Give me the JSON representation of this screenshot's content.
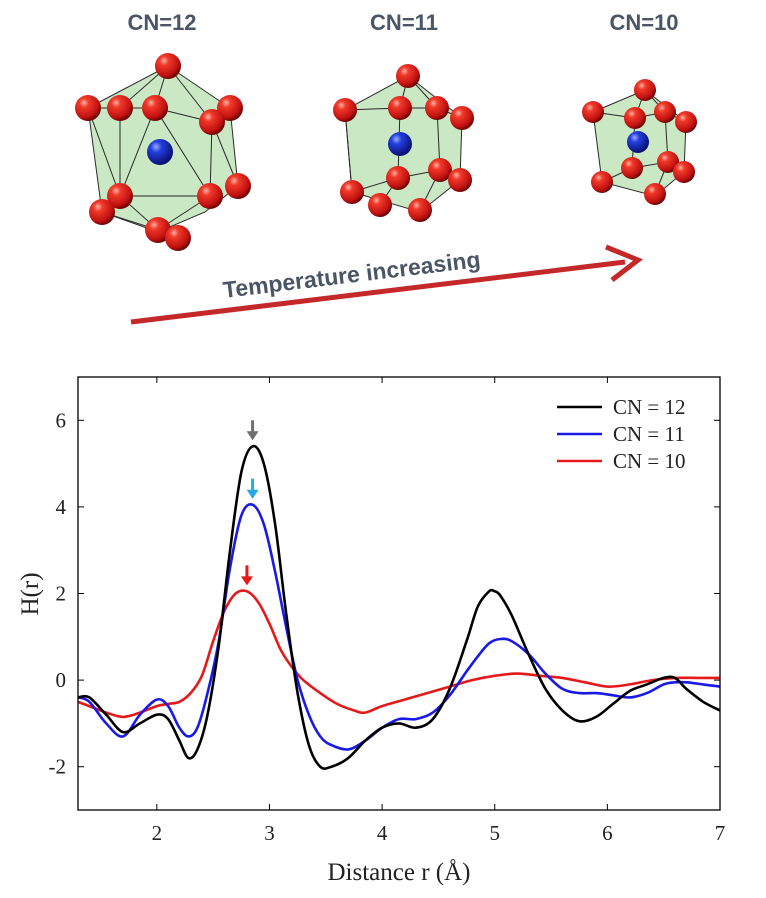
{
  "top_panel": {
    "cluster_labels": [
      "CN=12",
      "CN=11",
      "CN=10"
    ],
    "arrow_label": "Temperature increasing",
    "colors": {
      "atom_outer": "#e21a1a",
      "atom_center": "#1c2fd6",
      "polyhedron_fill": "#bfe4b8",
      "arrow": "#c42828",
      "label_text": "#4a5666"
    }
  },
  "chart_data": {
    "type": "line",
    "xlabel": "Distance r (Å)",
    "ylabel": "H(r)",
    "xlim": [
      1.3,
      7.0
    ],
    "ylim": [
      -3.0,
      7.0
    ],
    "xticks": [
      2,
      3,
      4,
      5,
      6,
      7
    ],
    "yticks": [
      -2,
      0,
      2,
      4,
      6
    ],
    "legend_position": "top-right",
    "grid": false,
    "series": [
      {
        "name": "CN = 12",
        "color": "#000000",
        "x": [
          1.3,
          1.4,
          1.55,
          1.7,
          1.85,
          2.0,
          2.1,
          2.2,
          2.28,
          2.36,
          2.45,
          2.55,
          2.65,
          2.75,
          2.85,
          2.95,
          3.05,
          3.15,
          3.25,
          3.35,
          3.45,
          3.55,
          3.7,
          3.85,
          4.0,
          4.15,
          4.3,
          4.45,
          4.6,
          4.75,
          4.85,
          4.95,
          5.0,
          5.05,
          5.15,
          5.3,
          5.45,
          5.6,
          5.75,
          5.9,
          6.05,
          6.2,
          6.35,
          6.5,
          6.6,
          6.7,
          6.85,
          7.0
        ],
        "y": [
          -0.4,
          -0.4,
          -0.8,
          -1.2,
          -1.0,
          -0.8,
          -0.9,
          -1.4,
          -1.8,
          -1.6,
          -0.8,
          0.8,
          3.0,
          4.8,
          5.4,
          5.0,
          3.6,
          1.5,
          -0.3,
          -1.5,
          -2.0,
          -2.0,
          -1.8,
          -1.4,
          -1.1,
          -1.0,
          -1.1,
          -0.9,
          -0.2,
          0.9,
          1.7,
          2.05,
          2.05,
          1.95,
          1.5,
          0.6,
          -0.2,
          -0.7,
          -0.95,
          -0.85,
          -0.55,
          -0.25,
          -0.1,
          0.05,
          0.05,
          -0.2,
          -0.5,
          -0.7
        ]
      },
      {
        "name": "CN = 11",
        "color": "#1a1ae6",
        "x": [
          1.3,
          1.4,
          1.55,
          1.7,
          1.85,
          2.0,
          2.1,
          2.2,
          2.28,
          2.36,
          2.45,
          2.55,
          2.65,
          2.75,
          2.85,
          2.95,
          3.05,
          3.15,
          3.25,
          3.35,
          3.45,
          3.55,
          3.7,
          3.85,
          4.0,
          4.15,
          4.3,
          4.45,
          4.6,
          4.75,
          4.85,
          4.95,
          5.05,
          5.15,
          5.3,
          5.45,
          5.6,
          5.75,
          5.9,
          6.05,
          6.2,
          6.35,
          6.5,
          6.6,
          6.7,
          6.85,
          7.0
        ],
        "y": [
          -0.4,
          -0.5,
          -1.0,
          -1.3,
          -0.8,
          -0.45,
          -0.6,
          -1.1,
          -1.3,
          -1.1,
          -0.3,
          0.9,
          2.6,
          3.8,
          4.05,
          3.6,
          2.5,
          1.2,
          0.0,
          -0.8,
          -1.3,
          -1.5,
          -1.6,
          -1.4,
          -1.1,
          -0.9,
          -0.9,
          -0.75,
          -0.35,
          0.2,
          0.55,
          0.85,
          0.95,
          0.9,
          0.6,
          0.15,
          -0.2,
          -0.3,
          -0.3,
          -0.35,
          -0.4,
          -0.3,
          -0.1,
          -0.05,
          -0.05,
          -0.1,
          -0.15
        ]
      },
      {
        "name": "CN = 10",
        "color": "#e41a1a",
        "x": [
          1.3,
          1.4,
          1.55,
          1.7,
          1.85,
          2.0,
          2.1,
          2.2,
          2.3,
          2.4,
          2.5,
          2.6,
          2.7,
          2.8,
          2.9,
          3.0,
          3.1,
          3.2,
          3.3,
          3.45,
          3.6,
          3.75,
          3.85,
          4.0,
          4.2,
          4.4,
          4.6,
          4.8,
          5.0,
          5.2,
          5.4,
          5.6,
          5.8,
          6.0,
          6.2,
          6.4,
          6.6,
          6.8,
          7.0
        ],
        "y": [
          -0.5,
          -0.6,
          -0.75,
          -0.85,
          -0.75,
          -0.6,
          -0.55,
          -0.5,
          -0.3,
          0.1,
          0.9,
          1.6,
          2.0,
          2.05,
          1.8,
          1.3,
          0.7,
          0.3,
          0.0,
          -0.3,
          -0.55,
          -0.7,
          -0.75,
          -0.6,
          -0.45,
          -0.3,
          -0.15,
          0.0,
          0.1,
          0.15,
          0.1,
          0.05,
          -0.05,
          -0.15,
          -0.1,
          0.0,
          0.05,
          0.05,
          0.05
        ]
      }
    ],
    "peak_markers": [
      {
        "x": 2.85,
        "y": 5.4,
        "color": "#707070"
      },
      {
        "x": 2.85,
        "y": 4.05,
        "color": "#29a9e0"
      },
      {
        "x": 2.8,
        "y": 2.05,
        "color": "#e41a1a"
      }
    ]
  }
}
